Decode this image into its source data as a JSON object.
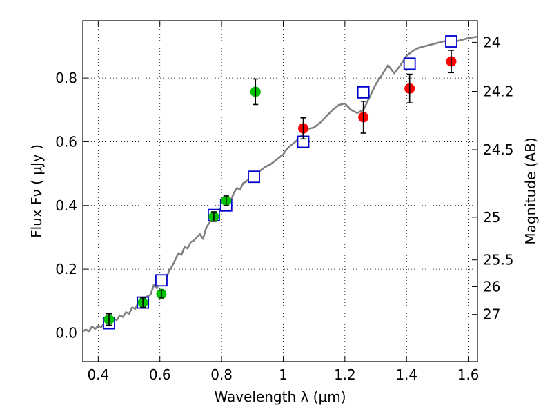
{
  "chart_data": {
    "type": "scatter",
    "title": "",
    "xlabel": "Wavelength  λ (μm)",
    "ylabel": "Flux  Fν  ( μJy )",
    "y2label": "Magnitude (AB)",
    "xlim": [
      0.35,
      1.63
    ],
    "ylim": [
      -0.09,
      0.98
    ],
    "grid": true,
    "x_ticks": [
      0.4,
      0.6,
      0.8,
      1.0,
      1.2,
      1.4,
      1.6
    ],
    "x_tick_labels": [
      "0.4",
      "0.6",
      "0.8",
      "1",
      "1.2",
      "1.4",
      "1.6"
    ],
    "y_ticks": [
      0.0,
      0.2,
      0.4,
      0.6,
      0.8
    ],
    "y_tick_labels": [
      "0.0",
      "0.2",
      "0.4",
      "0.6",
      "0.8"
    ],
    "y2_ticks": [
      {
        "label": "24",
        "flux": 0.912
      },
      {
        "label": "24.2",
        "flux": 0.758
      },
      {
        "label": "24.5",
        "flux": 0.575
      },
      {
        "label": "25",
        "flux": 0.363
      },
      {
        "label": "25.5",
        "flux": 0.229
      },
      {
        "label": "26",
        "flux": 0.145
      },
      {
        "label": "27",
        "flux": 0.058
      }
    ],
    "zero_line_y": 0.0,
    "series": [
      {
        "name": "model_spectrum",
        "type": "line",
        "color": "#808080",
        "x": [
          0.35,
          0.36,
          0.37,
          0.38,
          0.39,
          0.4,
          0.41,
          0.42,
          0.43,
          0.44,
          0.45,
          0.46,
          0.47,
          0.48,
          0.49,
          0.5,
          0.51,
          0.52,
          0.53,
          0.54,
          0.55,
          0.56,
          0.57,
          0.58,
          0.59,
          0.6,
          0.61,
          0.62,
          0.63,
          0.64,
          0.65,
          0.66,
          0.67,
          0.68,
          0.69,
          0.7,
          0.71,
          0.72,
          0.73,
          0.74,
          0.75,
          0.76,
          0.77,
          0.78,
          0.79,
          0.8,
          0.81,
          0.82,
          0.83,
          0.84,
          0.85,
          0.86,
          0.87,
          0.88,
          0.89,
          0.9,
          0.92,
          0.94,
          0.96,
          0.98,
          1.0,
          1.01,
          1.02,
          1.04,
          1.06,
          1.08,
          1.1,
          1.12,
          1.14,
          1.16,
          1.18,
          1.2,
          1.22,
          1.24,
          1.26,
          1.28,
          1.3,
          1.32,
          1.34,
          1.36,
          1.38,
          1.4,
          1.42,
          1.44,
          1.46,
          1.48,
          1.5,
          1.52,
          1.54,
          1.56,
          1.58,
          1.6,
          1.63
        ],
        "y": [
          0.005,
          0.01,
          0.005,
          0.02,
          0.012,
          0.022,
          0.018,
          0.03,
          0.035,
          0.028,
          0.045,
          0.04,
          0.055,
          0.05,
          0.065,
          0.06,
          0.08,
          0.075,
          0.095,
          0.1,
          0.11,
          0.115,
          0.12,
          0.15,
          0.14,
          0.16,
          0.155,
          0.17,
          0.195,
          0.21,
          0.23,
          0.25,
          0.245,
          0.27,
          0.265,
          0.285,
          0.29,
          0.3,
          0.31,
          0.295,
          0.33,
          0.345,
          0.36,
          0.37,
          0.385,
          0.395,
          0.405,
          0.42,
          0.415,
          0.44,
          0.455,
          0.45,
          0.47,
          0.475,
          0.485,
          0.49,
          0.505,
          0.52,
          0.53,
          0.545,
          0.56,
          0.575,
          0.585,
          0.6,
          0.62,
          0.64,
          0.645,
          0.66,
          0.68,
          0.7,
          0.715,
          0.72,
          0.7,
          0.69,
          0.7,
          0.74,
          0.78,
          0.81,
          0.84,
          0.815,
          0.84,
          0.87,
          0.885,
          0.895,
          0.9,
          0.905,
          0.91,
          0.915,
          0.915,
          0.915,
          0.92,
          0.925,
          0.93
        ]
      },
      {
        "name": "model_photometry",
        "type": "scatter",
        "marker": "square-open",
        "color": "#0000cc",
        "x": [
          0.435,
          0.545,
          0.605,
          0.775,
          0.815,
          0.905,
          1.065,
          1.26,
          1.41,
          1.545
        ],
        "y": [
          0.03,
          0.095,
          0.165,
          0.37,
          0.4,
          0.49,
          0.6,
          0.755,
          0.845,
          0.915
        ]
      },
      {
        "name": "observed_optical",
        "type": "scatter",
        "marker": "circle",
        "color": "#00c000",
        "x": [
          0.435,
          0.545,
          0.605,
          0.775,
          0.815,
          0.91
        ],
        "y": [
          0.042,
          0.095,
          0.122,
          0.365,
          0.415,
          0.757
        ],
        "yerr": [
          0.018,
          0.015,
          0.012,
          0.015,
          0.015,
          0.04
        ]
      },
      {
        "name": "observed_nir",
        "type": "scatter",
        "marker": "circle",
        "color": "#ff0000",
        "x": [
          1.065,
          1.26,
          1.41,
          1.545
        ],
        "y": [
          0.642,
          0.677,
          0.767,
          0.852
        ],
        "yerr": [
          0.033,
          0.05,
          0.045,
          0.035
        ]
      }
    ]
  }
}
